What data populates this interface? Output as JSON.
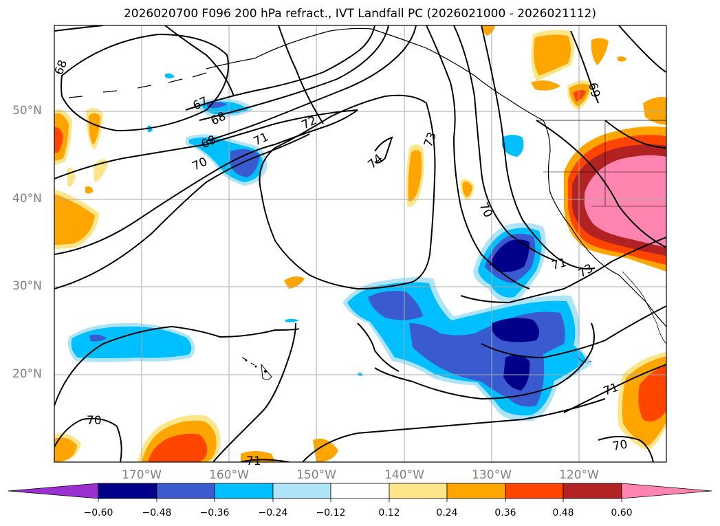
{
  "title": "2026020700 F096 200 hPa refract., IVT Landfall PC (2026021000 - 2026021112)",
  "axes": {
    "lat_labels": [
      "50°N",
      "40°N",
      "30°N",
      "20°N"
    ],
    "lon_labels": [
      "170°W",
      "160°W",
      "150°W",
      "140°W",
      "130°W",
      "120°W"
    ]
  },
  "contour_labels": [
    "67",
    "68",
    "68",
    "69",
    "69",
    "70",
    "70",
    "70",
    "70",
    "71",
    "71",
    "71",
    "71",
    "72",
    "73",
    "73",
    "74"
  ],
  "colorbar": {
    "ticks": [
      "−0.60",
      "−0.48",
      "−0.36",
      "−0.24",
      "−0.12",
      "0.12",
      "0.24",
      "0.36",
      "0.48",
      "0.60"
    ],
    "colors": [
      "#9b30d0",
      "#00008b",
      "#3a5bcf",
      "#00bfff",
      "#aee3f8",
      "#ffffff",
      "#fde68a",
      "#ffa500",
      "#ff4500",
      "#b22222",
      "#ff85b0"
    ],
    "extend": "both"
  },
  "chart_data": {
    "type": "heatmap",
    "title": "2026020700 F096 200 hPa refract., IVT Landfall PC (2026021000 - 2026021112)",
    "projection": "lat-lon",
    "xlim": [
      -180,
      -110
    ],
    "ylim": [
      10,
      60
    ],
    "grid": true,
    "levels": [
      -0.6,
      -0.48,
      -0.36,
      -0.24,
      -0.12,
      0.12,
      0.24,
      0.36,
      0.48,
      0.6
    ],
    "contour_field": "200 hPa refractivity",
    "contour_values": [
      67,
      68,
      69,
      70,
      71,
      72,
      73,
      74
    ]
  }
}
